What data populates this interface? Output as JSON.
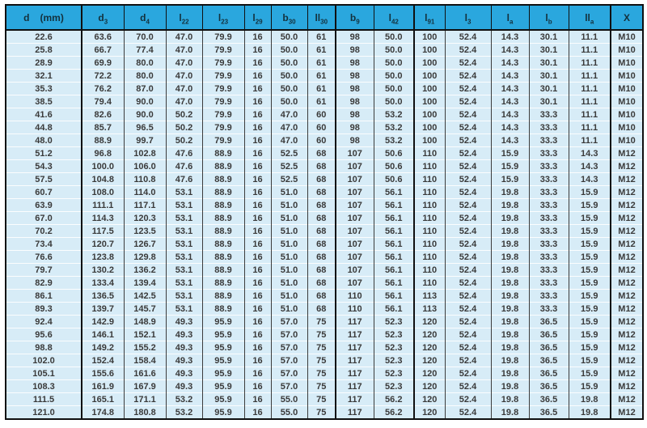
{
  "document": {
    "kind": "dimension-table",
    "rows_count": 30
  },
  "colors": {
    "header_bg": "#2aa7de",
    "row_bg": "#d7ecf7",
    "row_separator": "#fbfdfe",
    "grid_line": "#3c3c3c",
    "outer_border": "#101010",
    "header_text": "#14313d",
    "body_text": "#3a3a3a",
    "page_bg": "#ffffff"
  },
  "chart_data": {
    "type": "table",
    "columns": [
      {
        "base": "d",
        "sub": "",
        "unit": "(mm)"
      },
      {
        "base": "d",
        "sub": "3",
        "unit": ""
      },
      {
        "base": "d",
        "sub": "4",
        "unit": ""
      },
      {
        "base": "l",
        "sub": "22",
        "unit": ""
      },
      {
        "base": "l",
        "sub": "23",
        "unit": ""
      },
      {
        "base": "l",
        "sub": "29",
        "unit": ""
      },
      {
        "base": "b",
        "sub": "30",
        "unit": ""
      },
      {
        "base": "ll",
        "sub": "30",
        "unit": ""
      },
      {
        "base": "b",
        "sub": "9",
        "unit": ""
      },
      {
        "base": "l",
        "sub": "42",
        "unit": ""
      },
      {
        "base": "l",
        "sub": "91",
        "unit": ""
      },
      {
        "base": "l",
        "sub": "3",
        "unit": ""
      },
      {
        "base": "l",
        "sub": "a",
        "unit": ""
      },
      {
        "base": "l",
        "sub": "b",
        "unit": ""
      },
      {
        "base": "ll",
        "sub": "a",
        "unit": ""
      },
      {
        "base": "X",
        "sub": "",
        "unit": ""
      }
    ],
    "rows": [
      [
        "22.6",
        "63.6",
        "70.0",
        "47.0",
        "79.9",
        "16",
        "50.0",
        "61",
        "98",
        "50.0",
        "100",
        "52.4",
        "14.3",
        "30.1",
        "11.1",
        "M10"
      ],
      [
        "25.8",
        "66.7",
        "77.4",
        "47.0",
        "79.9",
        "16",
        "50.0",
        "61",
        "98",
        "50.0",
        "100",
        "52.4",
        "14.3",
        "30.1",
        "11.1",
        "M10"
      ],
      [
        "28.9",
        "69.9",
        "80.0",
        "47.0",
        "79.9",
        "16",
        "50.0",
        "61",
        "98",
        "50.0",
        "100",
        "52.4",
        "14.3",
        "30.1",
        "11.1",
        "M10"
      ],
      [
        "32.1",
        "72.2",
        "80.0",
        "47.0",
        "79.9",
        "16",
        "50.0",
        "61",
        "98",
        "50.0",
        "100",
        "52.4",
        "14.3",
        "30.1",
        "11.1",
        "M10"
      ],
      [
        "35.3",
        "76.2",
        "87.0",
        "47.0",
        "79.9",
        "16",
        "50.0",
        "61",
        "98",
        "50.0",
        "100",
        "52.4",
        "14.3",
        "30.1",
        "11.1",
        "M10"
      ],
      [
        "38.5",
        "79.4",
        "90.0",
        "47.0",
        "79.9",
        "16",
        "50.0",
        "61",
        "98",
        "50.0",
        "100",
        "52.4",
        "14.3",
        "30.1",
        "11.1",
        "M10"
      ],
      [
        "41.6",
        "82.6",
        "90.0",
        "50.2",
        "79.9",
        "16",
        "47.0",
        "60",
        "98",
        "53.2",
        "100",
        "52.4",
        "14.3",
        "33.3",
        "11.1",
        "M10"
      ],
      [
        "44.8",
        "85.7",
        "96.5",
        "50.2",
        "79.9",
        "16",
        "47.0",
        "60",
        "98",
        "53.2",
        "100",
        "52.4",
        "14.3",
        "33.3",
        "11.1",
        "M10"
      ],
      [
        "48.0",
        "88.9",
        "99.7",
        "50.2",
        "79.9",
        "16",
        "47.0",
        "60",
        "98",
        "53.2",
        "100",
        "52.4",
        "14.3",
        "33.3",
        "11.1",
        "M10"
      ],
      [
        "51.2",
        "96.8",
        "102.8",
        "47.6",
        "88.9",
        "16",
        "52.5",
        "68",
        "107",
        "50.6",
        "110",
        "52.4",
        "15.9",
        "33.3",
        "14.3",
        "M12"
      ],
      [
        "54.3",
        "100.0",
        "106.0",
        "47.6",
        "88.9",
        "16",
        "52.5",
        "68",
        "107",
        "50.6",
        "110",
        "52.4",
        "15.9",
        "33.3",
        "14.3",
        "M12"
      ],
      [
        "57.5",
        "104.8",
        "110.8",
        "47.6",
        "88.9",
        "16",
        "52.5",
        "68",
        "107",
        "50.6",
        "110",
        "52.4",
        "15.9",
        "33.3",
        "14.3",
        "M12"
      ],
      [
        "60.7",
        "108.0",
        "114.0",
        "53.1",
        "88.9",
        "16",
        "51.0",
        "68",
        "107",
        "56.1",
        "110",
        "52.4",
        "19.8",
        "33.3",
        "15.9",
        "M12"
      ],
      [
        "63.9",
        "111.1",
        "117.1",
        "53.1",
        "88.9",
        "16",
        "51.0",
        "68",
        "107",
        "56.1",
        "110",
        "52.4",
        "19.8",
        "33.3",
        "15.9",
        "M12"
      ],
      [
        "67.0",
        "114.3",
        "120.3",
        "53.1",
        "88.9",
        "16",
        "51.0",
        "68",
        "107",
        "56.1",
        "110",
        "52.4",
        "19.8",
        "33.3",
        "15.9",
        "M12"
      ],
      [
        "70.2",
        "117.5",
        "123.5",
        "53.1",
        "88.9",
        "16",
        "51.0",
        "68",
        "107",
        "56.1",
        "110",
        "52.4",
        "19.8",
        "33.3",
        "15.9",
        "M12"
      ],
      [
        "73.4",
        "120.7",
        "126.7",
        "53.1",
        "88.9",
        "16",
        "51.0",
        "68",
        "107",
        "56.1",
        "110",
        "52.4",
        "19.8",
        "33.3",
        "15.9",
        "M12"
      ],
      [
        "76.6",
        "123.8",
        "129.8",
        "53.1",
        "88.9",
        "16",
        "51.0",
        "68",
        "107",
        "56.1",
        "110",
        "52.4",
        "19.8",
        "33.3",
        "15.9",
        "M12"
      ],
      [
        "79.7",
        "130.2",
        "136.2",
        "53.1",
        "88.9",
        "16",
        "51.0",
        "68",
        "107",
        "56.1",
        "110",
        "52.4",
        "19.8",
        "33.3",
        "15.9",
        "M12"
      ],
      [
        "82.9",
        "133.4",
        "139.4",
        "53.1",
        "88.9",
        "16",
        "51.0",
        "68",
        "107",
        "56.1",
        "110",
        "52.4",
        "19.8",
        "33.3",
        "15.9",
        "M12"
      ],
      [
        "86.1",
        "136.5",
        "142.5",
        "53.1",
        "88.9",
        "16",
        "51.0",
        "68",
        "110",
        "56.1",
        "113",
        "52.4",
        "19.8",
        "33.3",
        "15.9",
        "M12"
      ],
      [
        "89.3",
        "139.7",
        "145.7",
        "53.1",
        "88.9",
        "16",
        "51.0",
        "68",
        "110",
        "56.1",
        "113",
        "52.4",
        "19.8",
        "33.3",
        "15.9",
        "M12"
      ],
      [
        "92.4",
        "142.9",
        "148.9",
        "49.3",
        "95.9",
        "16",
        "57.0",
        "75",
        "117",
        "52.3",
        "120",
        "52.4",
        "19.8",
        "36.5",
        "15.9",
        "M12"
      ],
      [
        "95.6",
        "146.1",
        "152.1",
        "49.3",
        "95.9",
        "16",
        "57.0",
        "75",
        "117",
        "52.3",
        "120",
        "52.4",
        "19.8",
        "36.5",
        "15.9",
        "M12"
      ],
      [
        "98.8",
        "149.2",
        "155.2",
        "49.3",
        "95.9",
        "16",
        "57.0",
        "75",
        "117",
        "52.3",
        "120",
        "52.4",
        "19.8",
        "36.5",
        "15.9",
        "M12"
      ],
      [
        "102.0",
        "152.4",
        "158.4",
        "49.3",
        "95.9",
        "16",
        "57.0",
        "75",
        "117",
        "52.3",
        "120",
        "52.4",
        "19.8",
        "36.5",
        "15.9",
        "M12"
      ],
      [
        "105.1",
        "155.6",
        "161.6",
        "49.3",
        "95.9",
        "16",
        "57.0",
        "75",
        "117",
        "52.3",
        "120",
        "52.4",
        "19.8",
        "36.5",
        "15.9",
        "M12"
      ],
      [
        "108.3",
        "161.9",
        "167.9",
        "49.3",
        "95.9",
        "16",
        "57.0",
        "75",
        "117",
        "52.3",
        "120",
        "52.4",
        "19.8",
        "36.5",
        "15.9",
        "M12"
      ],
      [
        "111.5",
        "165.1",
        "171.1",
        "53.2",
        "95.9",
        "16",
        "55.0",
        "75",
        "117",
        "56.2",
        "120",
        "52.4",
        "19.8",
        "36.5",
        "19.8",
        "M12"
      ],
      [
        "121.0",
        "174.8",
        "180.8",
        "53.2",
        "95.9",
        "16",
        "55.0",
        "75",
        "117",
        "56.2",
        "120",
        "52.4",
        "19.8",
        "36.5",
        "19.8",
        "M12"
      ]
    ]
  }
}
